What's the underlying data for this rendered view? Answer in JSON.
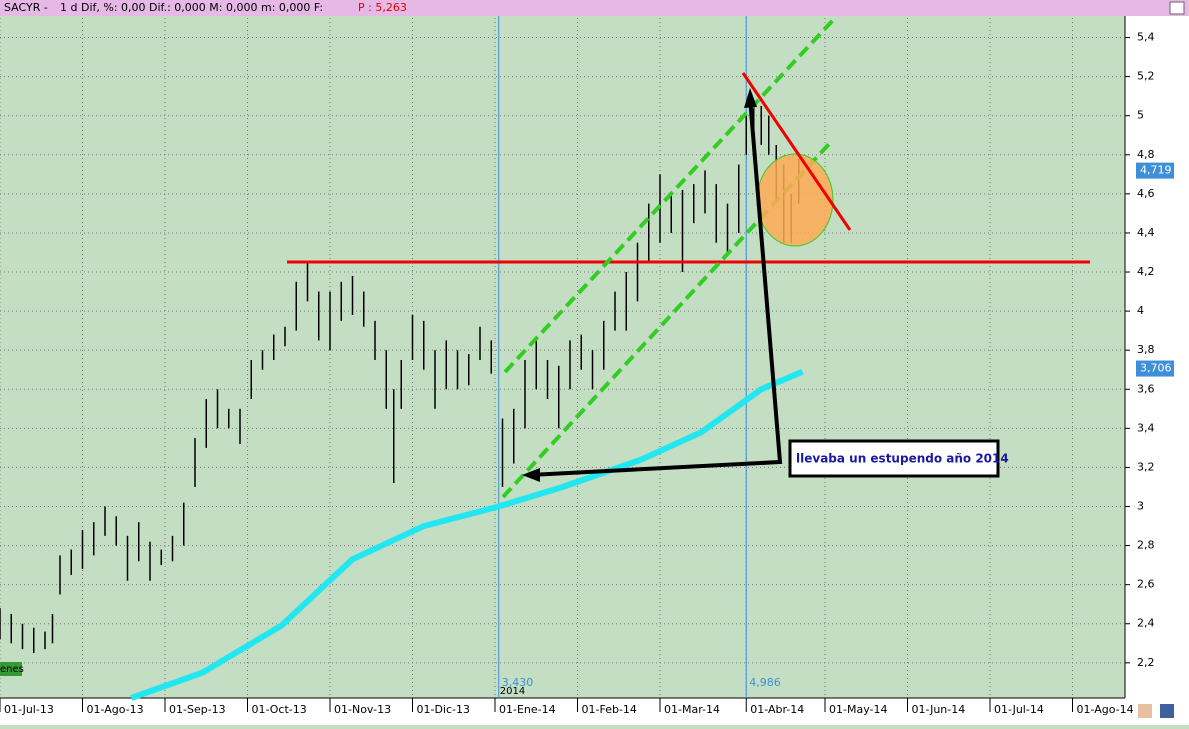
{
  "header": {
    "symbol": "SACYR -",
    "info": "1 d Dif, %: 0,00 Dif.: 0,000 M: 0,000 m: 0,000 F:",
    "price": "P : 5,263"
  },
  "chart_data": {
    "type": "ohlc",
    "color": "#000000",
    "x": [
      0,
      3,
      6,
      9,
      12,
      14,
      16,
      19,
      22,
      25,
      28,
      31,
      34,
      37,
      40,
      43,
      46,
      49,
      52,
      55,
      58,
      61,
      64,
      67,
      70,
      73,
      76,
      79,
      82,
      85,
      88,
      91,
      94,
      97,
      100,
      103,
      105,
      107,
      110,
      113,
      116,
      119,
      122,
      125,
      128,
      131,
      134,
      137,
      140,
      143,
      146,
      149,
      152,
      155,
      158,
      161,
      164,
      167,
      170,
      173,
      176,
      179,
      182,
      185,
      188,
      191,
      194,
      197,
      199,
      201,
      203,
      205,
      207,
      209,
      211,
      213
    ],
    "high": [
      2.48,
      2.45,
      2.4,
      2.38,
      2.36,
      2.45,
      2.75,
      2.78,
      2.88,
      2.92,
      3.0,
      2.95,
      2.85,
      2.92,
      2.82,
      2.78,
      2.85,
      3.02,
      3.35,
      3.55,
      3.6,
      3.5,
      3.5,
      3.75,
      3.8,
      3.88,
      3.92,
      4.15,
      4.25,
      4.1,
      4.1,
      4.15,
      4.18,
      4.1,
      3.95,
      3.8,
      3.6,
      3.75,
      3.98,
      3.95,
      3.8,
      3.85,
      3.8,
      3.78,
      3.92,
      3.85,
      3.45,
      3.5,
      3.75,
      3.85,
      3.75,
      3.72,
      3.85,
      3.88,
      3.8,
      3.95,
      4.1,
      4.2,
      4.35,
      4.55,
      4.7,
      4.6,
      4.62,
      4.65,
      4.72,
      4.65,
      4.55,
      4.75,
      5.0,
      5.08,
      5.05,
      5.0,
      4.85,
      4.75,
      4.6,
      4.78
    ],
    "low": [
      2.32,
      2.3,
      2.27,
      2.25,
      2.27,
      2.3,
      2.55,
      2.65,
      2.68,
      2.75,
      2.85,
      2.8,
      2.62,
      2.72,
      2.62,
      2.7,
      2.72,
      2.8,
      3.1,
      3.3,
      3.4,
      3.4,
      3.32,
      3.55,
      3.7,
      3.75,
      3.82,
      3.9,
      4.05,
      3.85,
      3.8,
      3.95,
      3.98,
      3.92,
      3.75,
      3.5,
      3.12,
      3.5,
      3.75,
      3.7,
      3.5,
      3.6,
      3.6,
      3.62,
      3.75,
      3.68,
      3.1,
      3.22,
      3.4,
      3.6,
      3.55,
      3.4,
      3.6,
      3.7,
      3.6,
      3.7,
      3.9,
      3.9,
      4.05,
      4.25,
      4.35,
      4.4,
      4.2,
      4.45,
      4.5,
      4.35,
      4.3,
      4.4,
      4.8,
      4.9,
      4.85,
      4.8,
      4.55,
      4.35,
      4.35,
      4.55
    ],
    "ma": {
      "color": "#22e6f0",
      "x": [
        35,
        54,
        75,
        94,
        113,
        133,
        150,
        171,
        187,
        203,
        214
      ],
      "values": [
        2.02,
        2.15,
        2.39,
        2.73,
        2.9,
        3.0,
        3.1,
        3.24,
        3.38,
        3.6,
        3.69
      ]
    },
    "xlim": [
      0,
      300
    ],
    "ylim": [
      2.02,
      5.5
    ],
    "xticks": [
      {
        "value": 0,
        "label": "01-Jul-13"
      },
      {
        "value": 22,
        "label": "01-Ago-13"
      },
      {
        "value": 44,
        "label": "01-Sep-13"
      },
      {
        "value": 66,
        "label": "01-Oct-13"
      },
      {
        "value": 88,
        "label": "01-Nov-13"
      },
      {
        "value": 110,
        "label": "01-Dic-13"
      },
      {
        "value": 132,
        "label": "01-Ene-14"
      },
      {
        "value": 154,
        "label": "01-Feb-14"
      },
      {
        "value": 176,
        "label": "01-Mar-14"
      },
      {
        "value": 199,
        "label": "01-Abr-14"
      },
      {
        "value": 220,
        "label": "01-May-14"
      },
      {
        "value": 242,
        "label": "01-Jun-14"
      },
      {
        "value": 264,
        "label": "01-Jul-14"
      },
      {
        "value": 286,
        "label": "01-Ago-14"
      }
    ],
    "yticks": [
      {
        "value": 2.2,
        "label": "2,2"
      },
      {
        "value": 2.4,
        "label": "2,4"
      },
      {
        "value": 2.6,
        "label": "2,6"
      },
      {
        "value": 2.8,
        "label": "2,8"
      },
      {
        "value": 3,
        "label": "3"
      },
      {
        "value": 3.2,
        "label": "3,2"
      },
      {
        "value": 3.4,
        "label": "3,4"
      },
      {
        "value": 3.6,
        "label": "3,6"
      },
      {
        "value": 3.8,
        "label": "3,8"
      },
      {
        "value": 4,
        "label": "4"
      },
      {
        "value": 4.2,
        "label": "4,2"
      },
      {
        "value": 4.4,
        "label": "4,4"
      },
      {
        "value": 4.6,
        "label": "4,6"
      },
      {
        "value": 4.8,
        "label": "4,8"
      },
      {
        "value": 5,
        "label": "5"
      },
      {
        "value": 5.2,
        "label": "5,2"
      },
      {
        "value": 5.4,
        "label": "5,4"
      }
    ],
    "grid": true,
    "price_tags": [
      {
        "value": 4.719,
        "label": "4,719"
      },
      {
        "value": 3.706,
        "label": "3,706"
      }
    ],
    "markers": [
      {
        "x": 133,
        "label": "3,430"
      },
      {
        "x": 199,
        "label": "4,986"
      }
    ],
    "year_label": "2014",
    "volume_label": "enes",
    "annotation": "llevaba un estupendo año 2014"
  }
}
